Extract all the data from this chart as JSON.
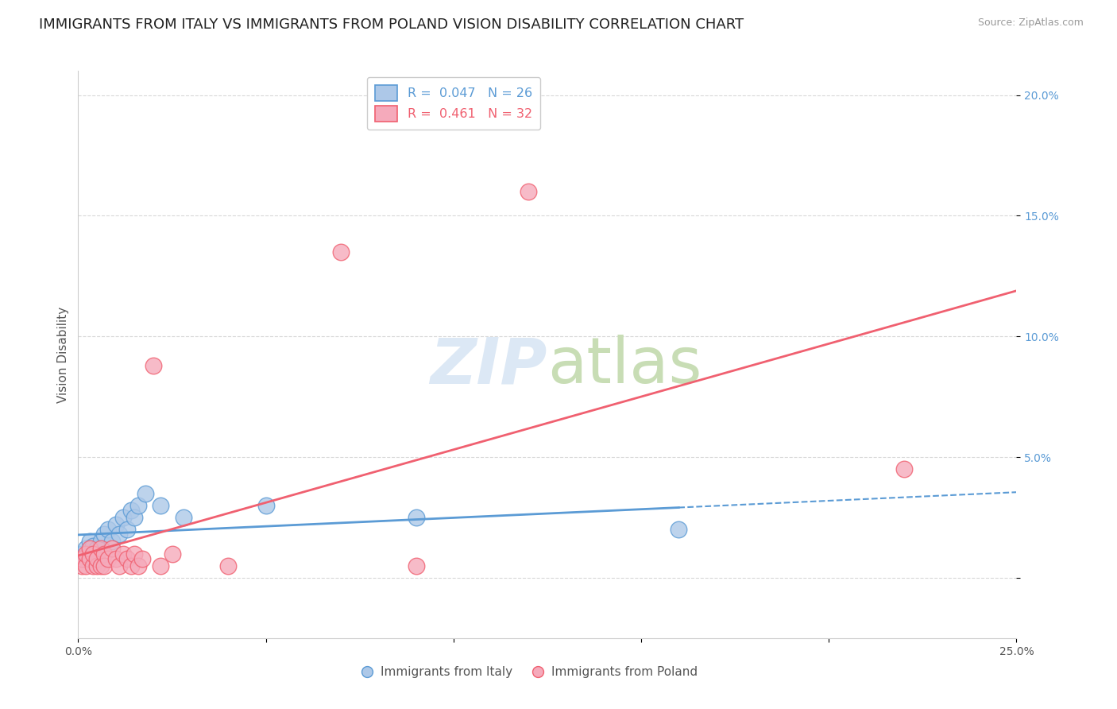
{
  "title": "IMMIGRANTS FROM ITALY VS IMMIGRANTS FROM POLAND VISION DISABILITY CORRELATION CHART",
  "source": "Source: ZipAtlas.com",
  "ylabel": "Vision Disability",
  "xlim": [
    0.0,
    0.25
  ],
  "ylim": [
    -0.025,
    0.21
  ],
  "italy_R": 0.047,
  "italy_N": 26,
  "poland_R": 0.461,
  "poland_N": 32,
  "italy_color": "#adc8e8",
  "poland_color": "#f5aabb",
  "italy_line_color": "#5b9bd5",
  "poland_line_color": "#f06070",
  "background_color": "#ffffff",
  "grid_color": "#d8d8d8",
  "italy_x": [
    0.001,
    0.002,
    0.002,
    0.003,
    0.003,
    0.004,
    0.004,
    0.005,
    0.005,
    0.006,
    0.007,
    0.008,
    0.009,
    0.01,
    0.011,
    0.012,
    0.013,
    0.014,
    0.015,
    0.016,
    0.018,
    0.022,
    0.028,
    0.05,
    0.09,
    0.16
  ],
  "italy_y": [
    0.01,
    0.008,
    0.012,
    0.01,
    0.015,
    0.01,
    0.013,
    0.012,
    0.008,
    0.015,
    0.018,
    0.02,
    0.015,
    0.022,
    0.018,
    0.025,
    0.02,
    0.028,
    0.025,
    0.03,
    0.035,
    0.03,
    0.025,
    0.03,
    0.025,
    0.02
  ],
  "poland_x": [
    0.001,
    0.001,
    0.002,
    0.002,
    0.003,
    0.003,
    0.004,
    0.004,
    0.005,
    0.005,
    0.006,
    0.006,
    0.007,
    0.007,
    0.008,
    0.009,
    0.01,
    0.011,
    0.012,
    0.013,
    0.014,
    0.015,
    0.016,
    0.017,
    0.02,
    0.022,
    0.025,
    0.04,
    0.07,
    0.09,
    0.12,
    0.22
  ],
  "poland_y": [
    0.005,
    0.008,
    0.005,
    0.01,
    0.008,
    0.012,
    0.005,
    0.01,
    0.005,
    0.008,
    0.012,
    0.005,
    0.01,
    0.005,
    0.008,
    0.012,
    0.008,
    0.005,
    0.01,
    0.008,
    0.005,
    0.01,
    0.005,
    0.008,
    0.088,
    0.005,
    0.01,
    0.005,
    0.135,
    0.005,
    0.16,
    0.045
  ],
  "title_fontsize": 13,
  "tick_fontsize": 10,
  "legend_fontsize": 11.5
}
